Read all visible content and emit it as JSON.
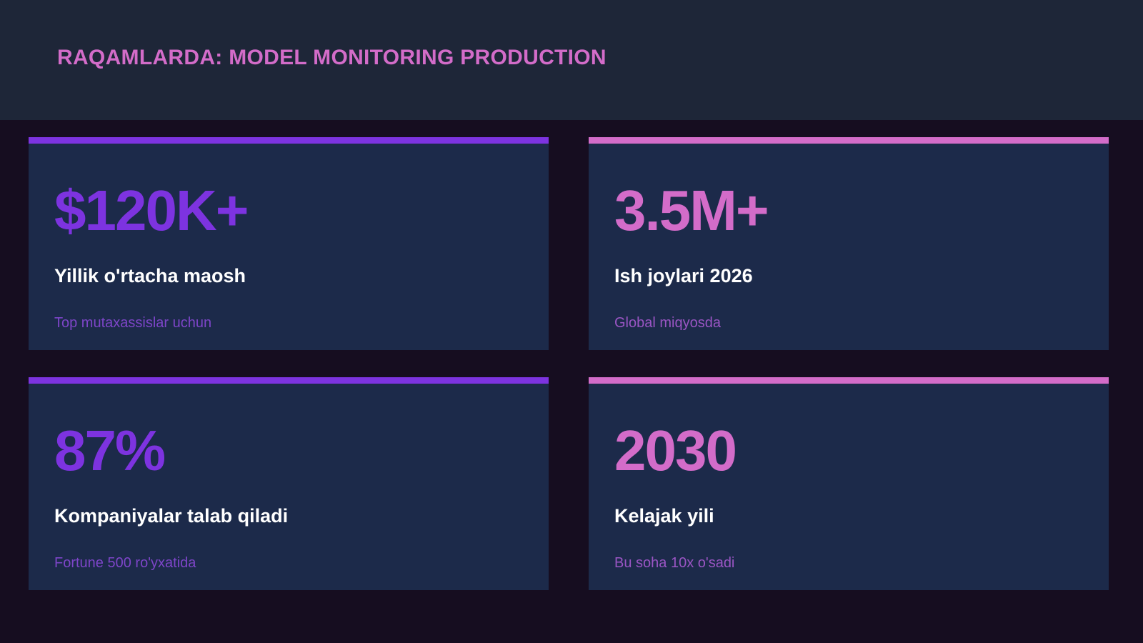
{
  "header": {
    "title": "RAQAMLARDA: MODEL MONITORING PRODUCTION"
  },
  "cards": [
    {
      "value": "$120K+",
      "label": "Yillik o'rtacha maosh",
      "note": "Top mutaxassislar uchun"
    },
    {
      "value": "3.5M+",
      "label": "Ish joylari 2026",
      "note": "Global miqyosda"
    },
    {
      "value": "87%",
      "label": "Kompaniyalar talab qiladi",
      "note": "Fortune 500 ro'yxatida"
    },
    {
      "value": "2030",
      "label": "Kelajak yili",
      "note": "Bu soha 10x o'sadi"
    }
  ]
}
